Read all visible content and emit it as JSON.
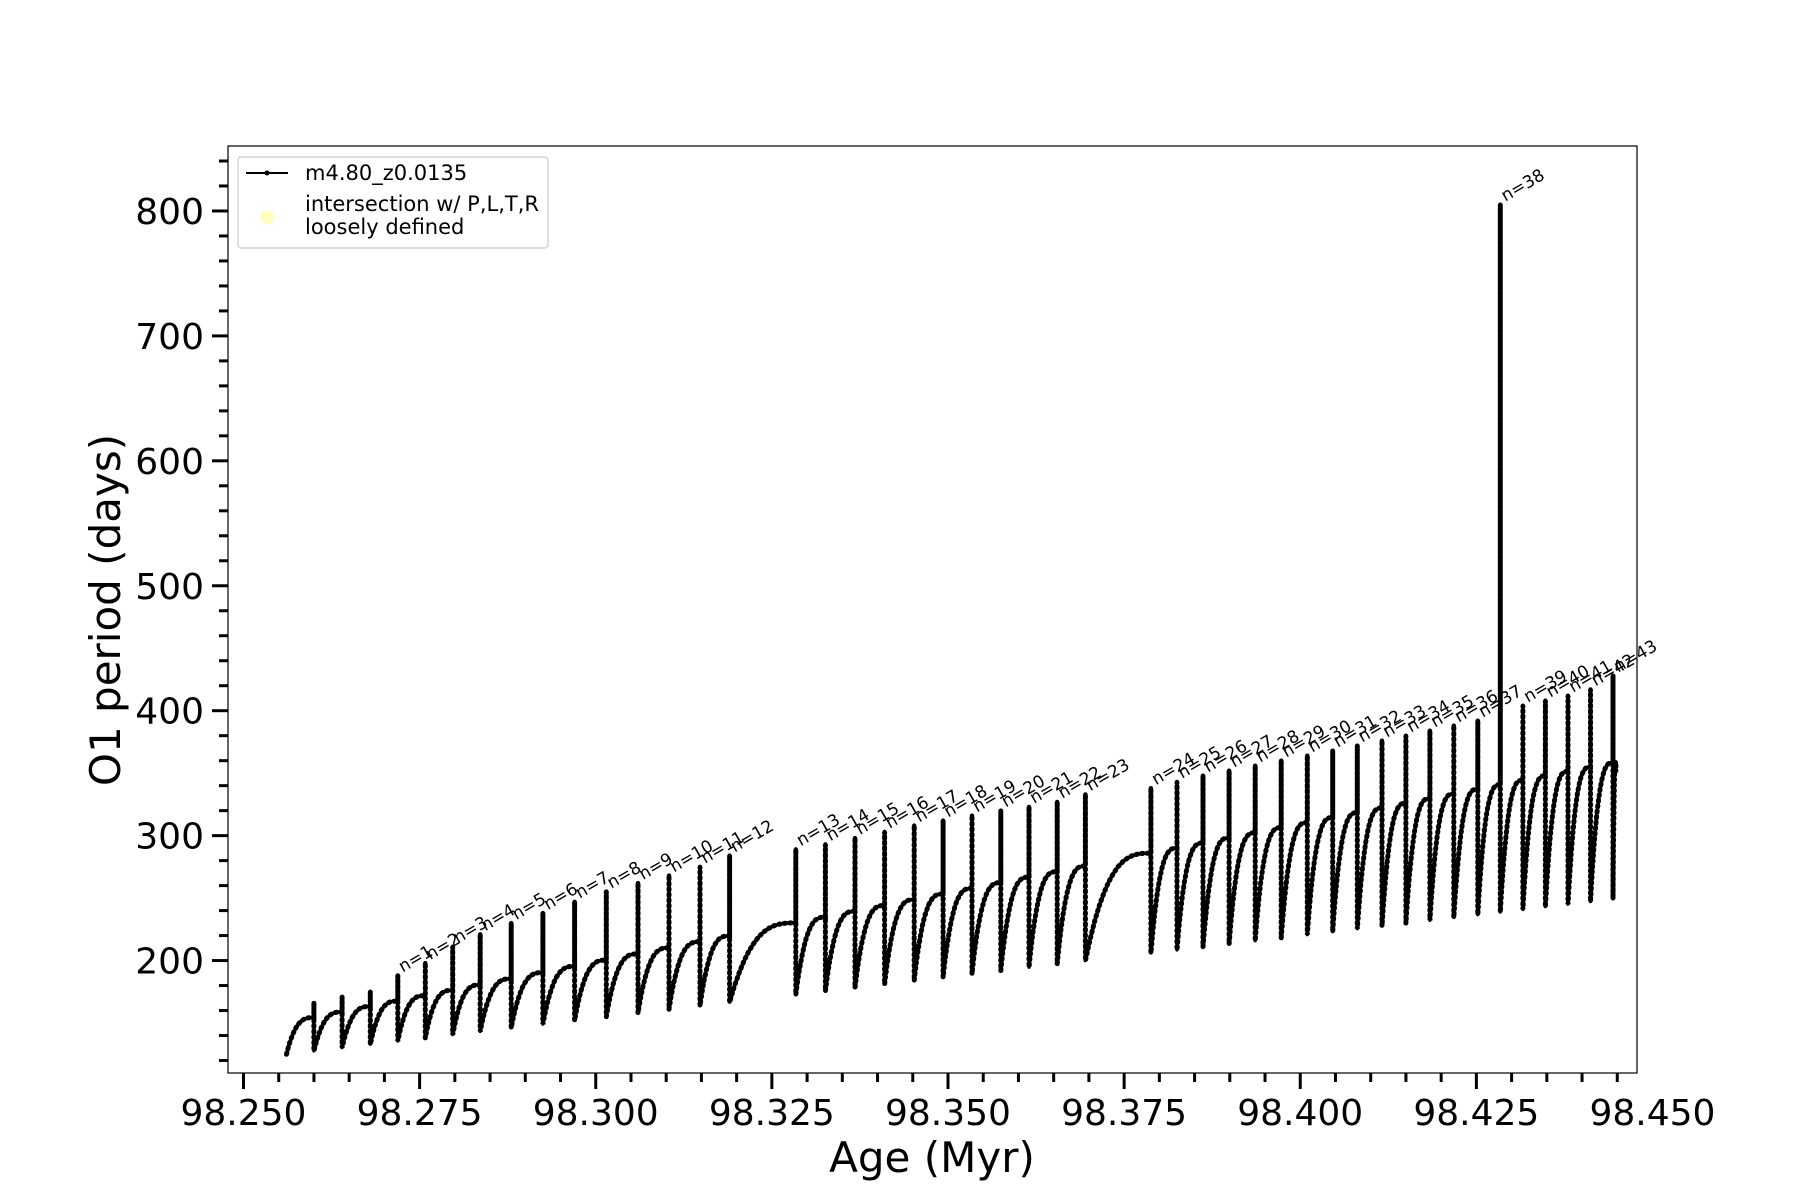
{
  "chart_data": {
    "type": "line",
    "title": "",
    "xlabel": "Age (Myr)",
    "ylabel": "O1 period (days)",
    "xlim": [
      98.2478,
      98.4478
    ],
    "ylim": [
      110,
      852
    ],
    "xticks": [
      "98.250",
      "98.275",
      "98.300",
      "98.325",
      "98.350",
      "98.375",
      "98.400",
      "98.425",
      "98.450"
    ],
    "yticks": [
      "200",
      "300",
      "400",
      "500",
      "600",
      "700",
      "800"
    ],
    "grid": false,
    "legend_position": "top-left",
    "legend": [
      {
        "label": "m4.80_z0.0135",
        "marker": "line-dot",
        "color": "#000000"
      },
      {
        "label": "intersection w/ P,L,T,R loosely defined",
        "marker": "circle",
        "color": "#ffffc0"
      }
    ],
    "series": [
      {
        "name": "m4.80_z0.0135",
        "color": "#000000",
        "pulses": [
          {
            "n": 1,
            "x": 98.2719,
            "peak": 188
          },
          {
            "n": 2,
            "x": 98.2758,
            "peak": 198
          },
          {
            "n": 3,
            "x": 98.2797,
            "peak": 211
          },
          {
            "n": 4,
            "x": 98.2836,
            "peak": 221
          },
          {
            "n": 5,
            "x": 98.288,
            "peak": 230
          },
          {
            "n": 6,
            "x": 98.2925,
            "peak": 238
          },
          {
            "n": 7,
            "x": 98.297,
            "peak": 247
          },
          {
            "n": 8,
            "x": 98.3015,
            "peak": 255
          },
          {
            "n": 9,
            "x": 98.306,
            "peak": 262
          },
          {
            "n": 10,
            "x": 98.3104,
            "peak": 268
          },
          {
            "n": 11,
            "x": 98.3148,
            "peak": 275
          },
          {
            "n": 12,
            "x": 98.319,
            "peak": 284
          },
          {
            "n": 13,
            "x": 98.3284,
            "peak": 289
          },
          {
            "n": 14,
            "x": 98.3326,
            "peak": 293
          },
          {
            "n": 15,
            "x": 98.3368,
            "peak": 298
          },
          {
            "n": 16,
            "x": 98.341,
            "peak": 303
          },
          {
            "n": 17,
            "x": 98.3452,
            "peak": 308
          },
          {
            "n": 18,
            "x": 98.3493,
            "peak": 312
          },
          {
            "n": 19,
            "x": 98.3534,
            "peak": 316
          },
          {
            "n": 20,
            "x": 98.3575,
            "peak": 320
          },
          {
            "n": 21,
            "x": 98.3615,
            "peak": 323
          },
          {
            "n": 22,
            "x": 98.3655,
            "peak": 327
          },
          {
            "n": 23,
            "x": 98.3695,
            "peak": 333
          },
          {
            "n": 24,
            "x": 98.3788,
            "peak": 338
          },
          {
            "n": 25,
            "x": 98.3825,
            "peak": 343
          },
          {
            "n": 26,
            "x": 98.3862,
            "peak": 348
          },
          {
            "n": 27,
            "x": 98.3899,
            "peak": 352
          },
          {
            "n": 28,
            "x": 98.3936,
            "peak": 356
          },
          {
            "n": 29,
            "x": 98.3973,
            "peak": 360
          },
          {
            "n": 30,
            "x": 98.401,
            "peak": 364
          },
          {
            "n": 31,
            "x": 98.4046,
            "peak": 368
          },
          {
            "n": 32,
            "x": 98.4081,
            "peak": 372
          },
          {
            "n": 33,
            "x": 98.4116,
            "peak": 376
          },
          {
            "n": 34,
            "x": 98.415,
            "peak": 380
          },
          {
            "n": 35,
            "x": 98.4184,
            "peak": 384
          },
          {
            "n": 36,
            "x": 98.4218,
            "peak": 388
          },
          {
            "n": 37,
            "x": 98.4252,
            "peak": 392
          },
          {
            "n": 38,
            "x": 98.4284,
            "peak": 805
          },
          {
            "n": 39,
            "x": 98.4316,
            "peak": 404
          },
          {
            "n": 40,
            "x": 98.4348,
            "peak": 408
          },
          {
            "n": 41,
            "x": 98.438,
            "peak": 412
          },
          {
            "n": 42,
            "x": 98.4412,
            "peak": 417
          },
          {
            "n": 43,
            "x": 98.4444,
            "peak": 428
          }
        ],
        "end": {
          "x": 98.4448,
          "y": 352
        }
      }
    ]
  }
}
